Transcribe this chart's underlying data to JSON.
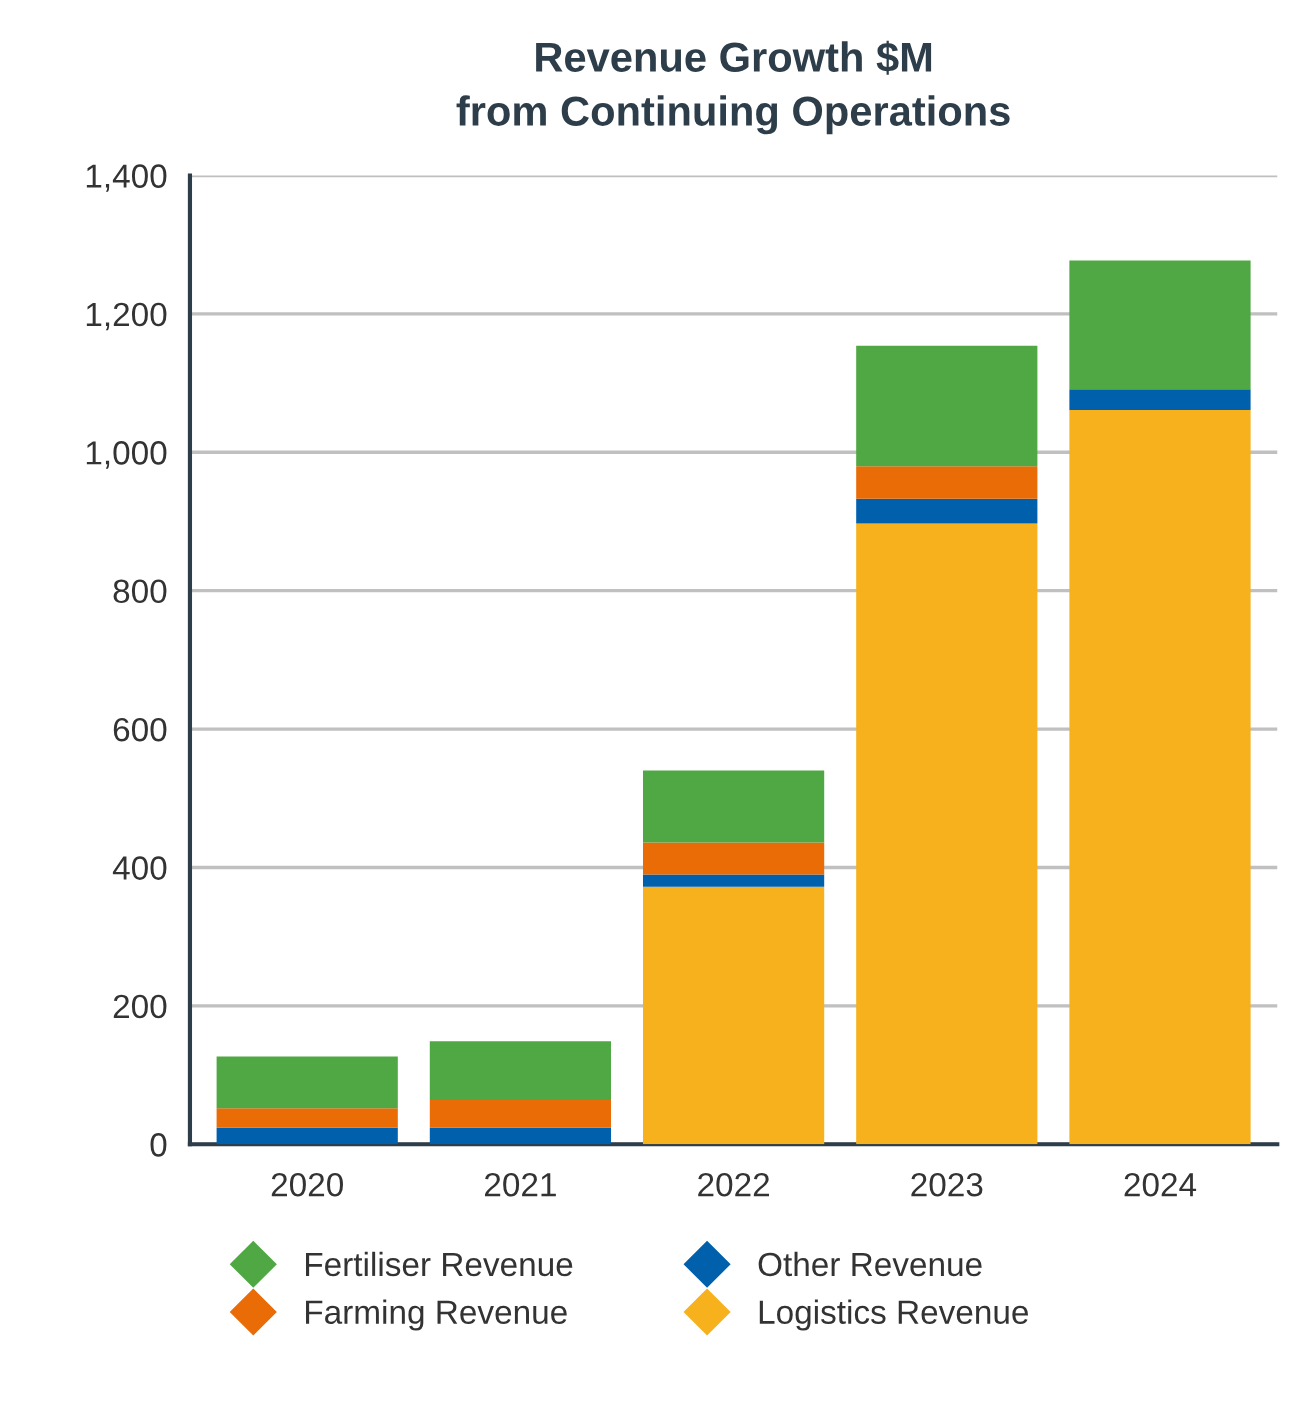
{
  "chart_data": {
    "type": "bar",
    "title": "Revenue Growth $M\nfrom Continuing Operations",
    "stacked": true,
    "categories": [
      "2020",
      "2021",
      "2022",
      "2023",
      "2024"
    ],
    "series": [
      {
        "name": "Logistics Revenue",
        "color": "#f6b11c",
        "values": [
          0,
          0,
          372,
          897,
          1061
        ]
      },
      {
        "name": "Other Revenue",
        "color": "#0060ac",
        "values": [
          24,
          24,
          18,
          36,
          30
        ]
      },
      {
        "name": "Farming Revenue",
        "color": "#e96c07",
        "values": [
          28,
          40,
          46,
          47,
          0
        ]
      },
      {
        "name": "Fertiliser Revenue",
        "color": "#4fa843",
        "values": [
          75,
          85,
          104,
          174,
          186
        ]
      }
    ],
    "ylim": [
      0,
      1400
    ],
    "yticks": [
      0,
      200,
      400,
      600,
      800,
      {
        "value": 1000,
        "label": "1,000"
      },
      {
        "value": 1200,
        "label": "1,200"
      },
      {
        "value": 1400,
        "label": "1,400"
      }
    ],
    "grid": "y",
    "legend": "bottom",
    "marker": "diamond"
  }
}
